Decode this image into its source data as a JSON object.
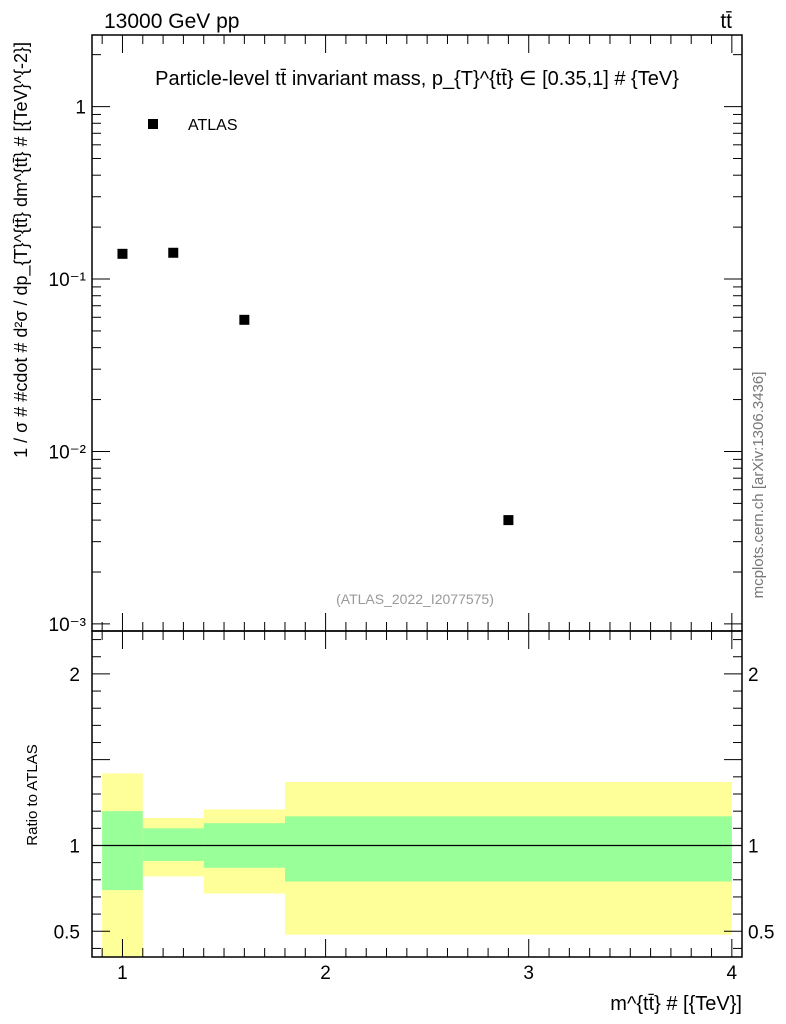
{
  "header": {
    "left_label": "13000 GeV pp",
    "right_label": "tt̄"
  },
  "chart_data": [
    {
      "type": "scatter",
      "panel": "main",
      "title": "Particle-level tt̄ invariant mass, p_{T}^{tt̄} ∈ [0.35,1] # {TeV}",
      "ylabel": "1 / σ # #cdot # d²σ / dp_{T}^{tt̄} dm^{tt̄} # [{TeV}^{-2}]",
      "xlim": [
        0.85,
        4.05
      ],
      "ylim": [
        0.00091,
        2.6
      ],
      "yscale": "log",
      "y_tick_labels": [
        "10⁻³",
        "10⁻²",
        "10⁻¹",
        "1"
      ],
      "y_tick_values": [
        0.001,
        0.01,
        0.1,
        1
      ],
      "legend_placement": "top-left",
      "annotation": "(ATLAS_2022_I2077575)",
      "side_label": "mcplots.cern.ch [arXiv:1306.3436]",
      "series": [
        {
          "name": "ATLAS",
          "color": "#000000",
          "x": [
            1.0,
            1.25,
            1.6,
            2.9
          ],
          "y": [
            0.14,
            0.142,
            0.058,
            0.004
          ]
        }
      ]
    },
    {
      "type": "area",
      "panel": "ratio",
      "ylabel": "Ratio to ATLAS",
      "xlabel": "m^{tt̄} # [{TeV}]",
      "xlim": [
        0.85,
        4.05
      ],
      "ylim": [
        0.35,
        2.25
      ],
      "y_tick_labels": [
        "0.5",
        "1",
        "2"
      ],
      "y_tick_values": [
        0.5,
        1,
        2
      ],
      "x_tick_labels": [
        "1",
        "2",
        "3",
        "4"
      ],
      "x_tick_values": [
        1,
        2,
        3,
        4
      ],
      "reference_line": 1,
      "bin_edges": [
        0.9,
        1.1,
        1.4,
        1.8,
        4.0
      ],
      "band_inner": {
        "color": "#99ff99",
        "low": [
          0.74,
          0.91,
          0.87,
          0.79
        ],
        "high": [
          1.2,
          1.1,
          1.13,
          1.17
        ]
      },
      "band_outer": {
        "color": "#ffff99",
        "low": [
          0.35,
          0.82,
          0.72,
          0.48
        ],
        "high": [
          1.42,
          1.16,
          1.21,
          1.37
        ]
      }
    }
  ]
}
